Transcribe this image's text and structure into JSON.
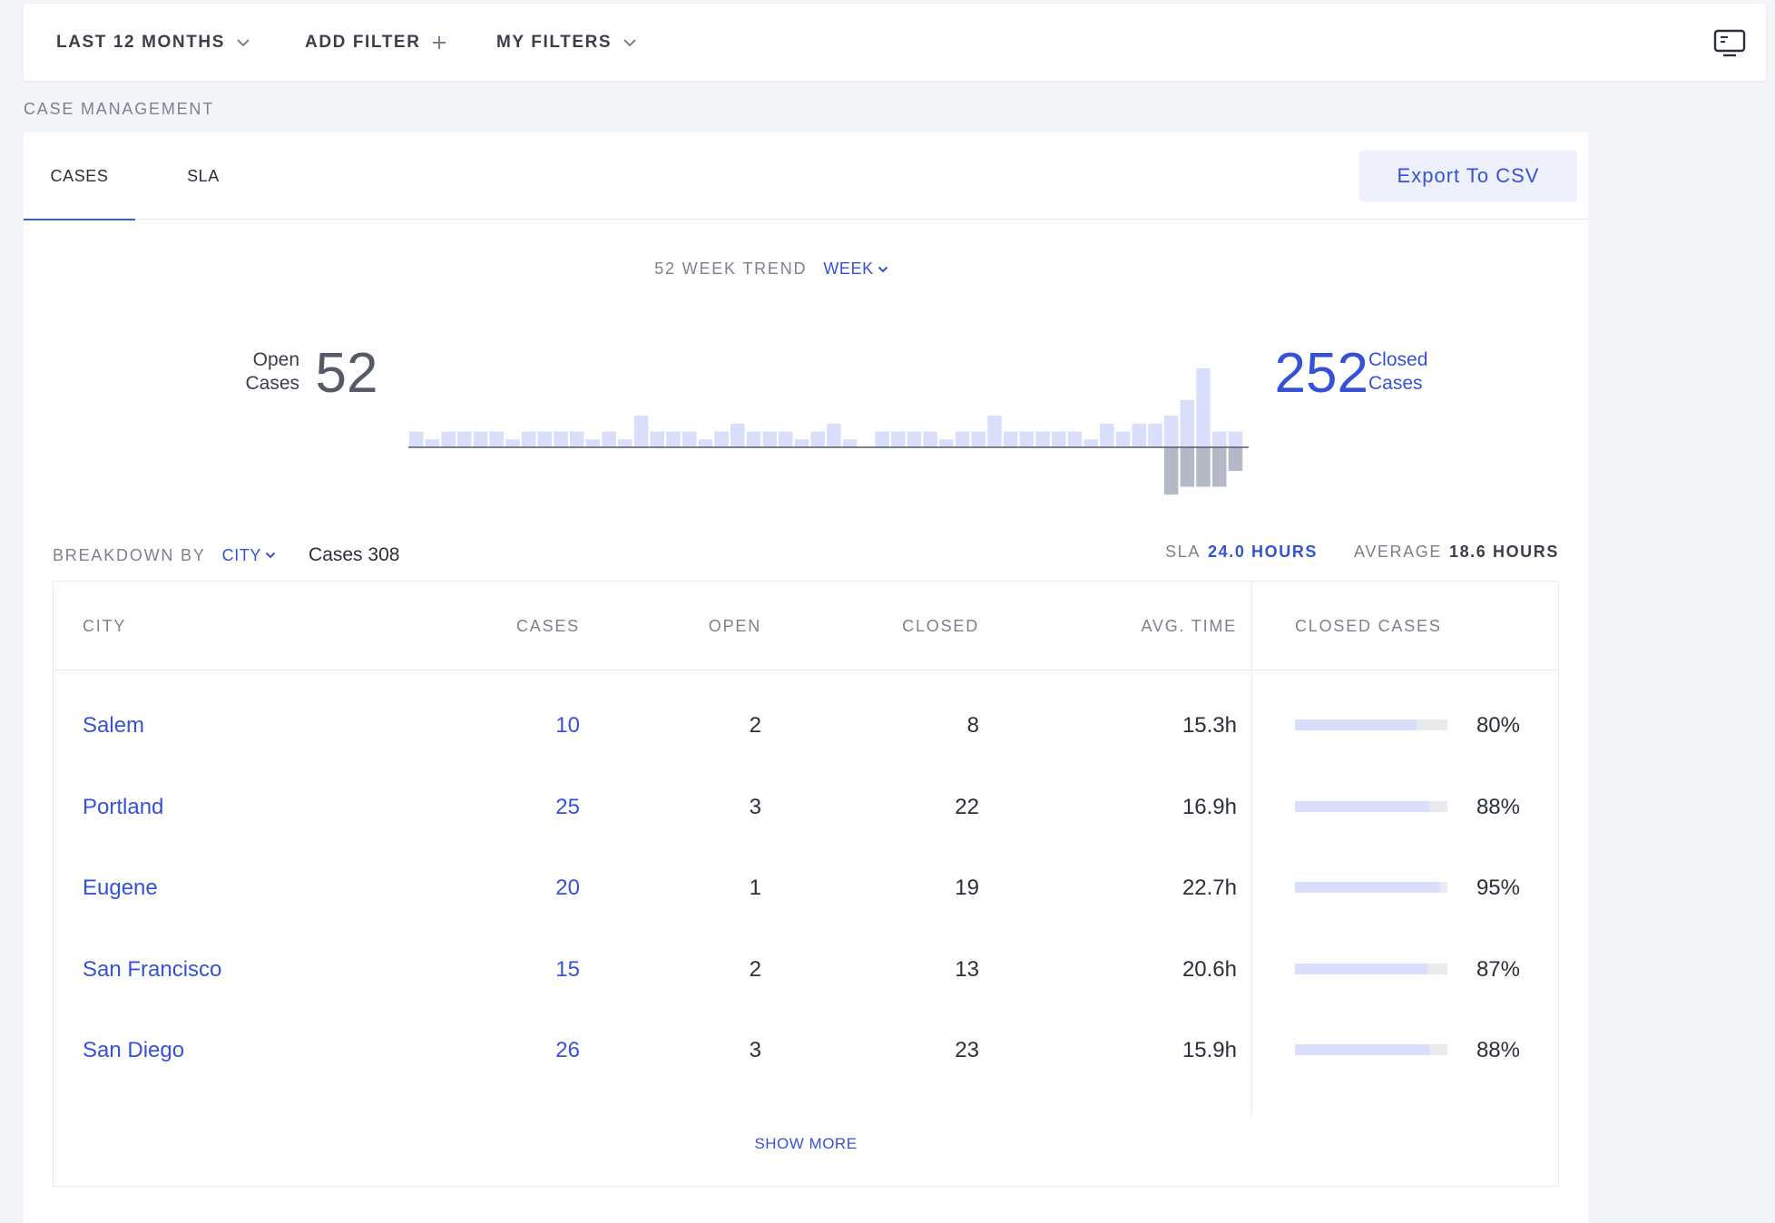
{
  "filters": {
    "period": "LAST 12 MONTHS",
    "add_filter": "ADD FILTER",
    "my_filters": "MY FILTERS"
  },
  "section_title": "CASE MANAGEMENT",
  "tabs": [
    {
      "label": "CASES",
      "active": true
    },
    {
      "label": "SLA",
      "active": false
    }
  ],
  "export_label": "Export To CSV",
  "trend": {
    "title": "52 WEEK TREND",
    "granularity": "WEEK",
    "open_label_1": "Open",
    "open_label_2": "Cases",
    "open_count": "52",
    "closed_count": "252",
    "closed_label_1": "Closed",
    "closed_label_2": "Cases"
  },
  "chart_data": {
    "type": "bar",
    "title": "52 WEEK TREND",
    "series": [
      {
        "values": [
          2,
          1,
          2,
          2,
          2,
          2,
          1,
          2,
          2,
          2,
          2,
          1,
          2,
          1,
          4,
          2,
          2,
          2,
          1,
          2,
          3,
          2,
          2,
          2,
          1,
          2,
          3,
          1,
          0,
          2,
          2,
          2,
          2,
          1,
          2,
          2,
          4,
          2,
          2,
          2,
          2,
          2,
          1,
          3,
          2,
          3,
          3,
          4,
          6,
          10,
          2,
          2
        ]
      },
      {
        "values": [
          0,
          0,
          0,
          0,
          0,
          0,
          0,
          0,
          0,
          0,
          0,
          0,
          0,
          0,
          0,
          0,
          0,
          0,
          0,
          0,
          0,
          0,
          0,
          0,
          0,
          0,
          0,
          0,
          0,
          0,
          0,
          0,
          0,
          0,
          0,
          0,
          0,
          0,
          0,
          0,
          0,
          0,
          0,
          0,
          0,
          0,
          0,
          -6,
          -5,
          -5,
          -5,
          -3
        ]
      }
    ]
  },
  "breakdown": {
    "label": "BREAKDOWN BY",
    "dimension": "CITY",
    "cases_total": "Cases 308",
    "sla_label": "SLA",
    "sla_value": "24.0 HOURS",
    "avg_label": "AVERAGE",
    "avg_value": "18.6 HOURS"
  },
  "table": {
    "headers": {
      "city": "CITY",
      "cases": "CASES",
      "open": "OPEN",
      "closed": "CLOSED",
      "avg_time": "AVG. TIME",
      "closed_cases": "CLOSED CASES"
    },
    "rows": [
      {
        "city": "Salem",
        "cases": "10",
        "open": "2",
        "closed": "8",
        "avg": "15.3h",
        "pct": "80%",
        "fill": 0.8
      },
      {
        "city": "Portland",
        "cases": "25",
        "open": "3",
        "closed": "22",
        "avg": "16.9h",
        "pct": "88%",
        "fill": 0.88
      },
      {
        "city": "Eugene",
        "cases": "20",
        "open": "1",
        "closed": "19",
        "avg": "22.7h",
        "pct": "95%",
        "fill": 0.95
      },
      {
        "city": "San Francisco",
        "cases": "15",
        "open": "2",
        "closed": "13",
        "avg": "20.6h",
        "pct": "87%",
        "fill": 0.87
      },
      {
        "city": "San Diego",
        "cases": "26",
        "open": "3",
        "closed": "23",
        "avg": "15.9h",
        "pct": "88%",
        "fill": 0.88
      }
    ],
    "show_more": "SHOW MORE"
  },
  "colors": {
    "accent": "#3552d6",
    "bar_up": "#d9defa",
    "bar_down": "#b3b9c6",
    "bar_track": "#e9eaee"
  },
  "icons": {
    "period_chevron": "chevron-down-icon",
    "add_filter": "plus-icon",
    "my_filters_chevron": "chevron-down-icon",
    "display_toggle": "monitor-icon"
  }
}
